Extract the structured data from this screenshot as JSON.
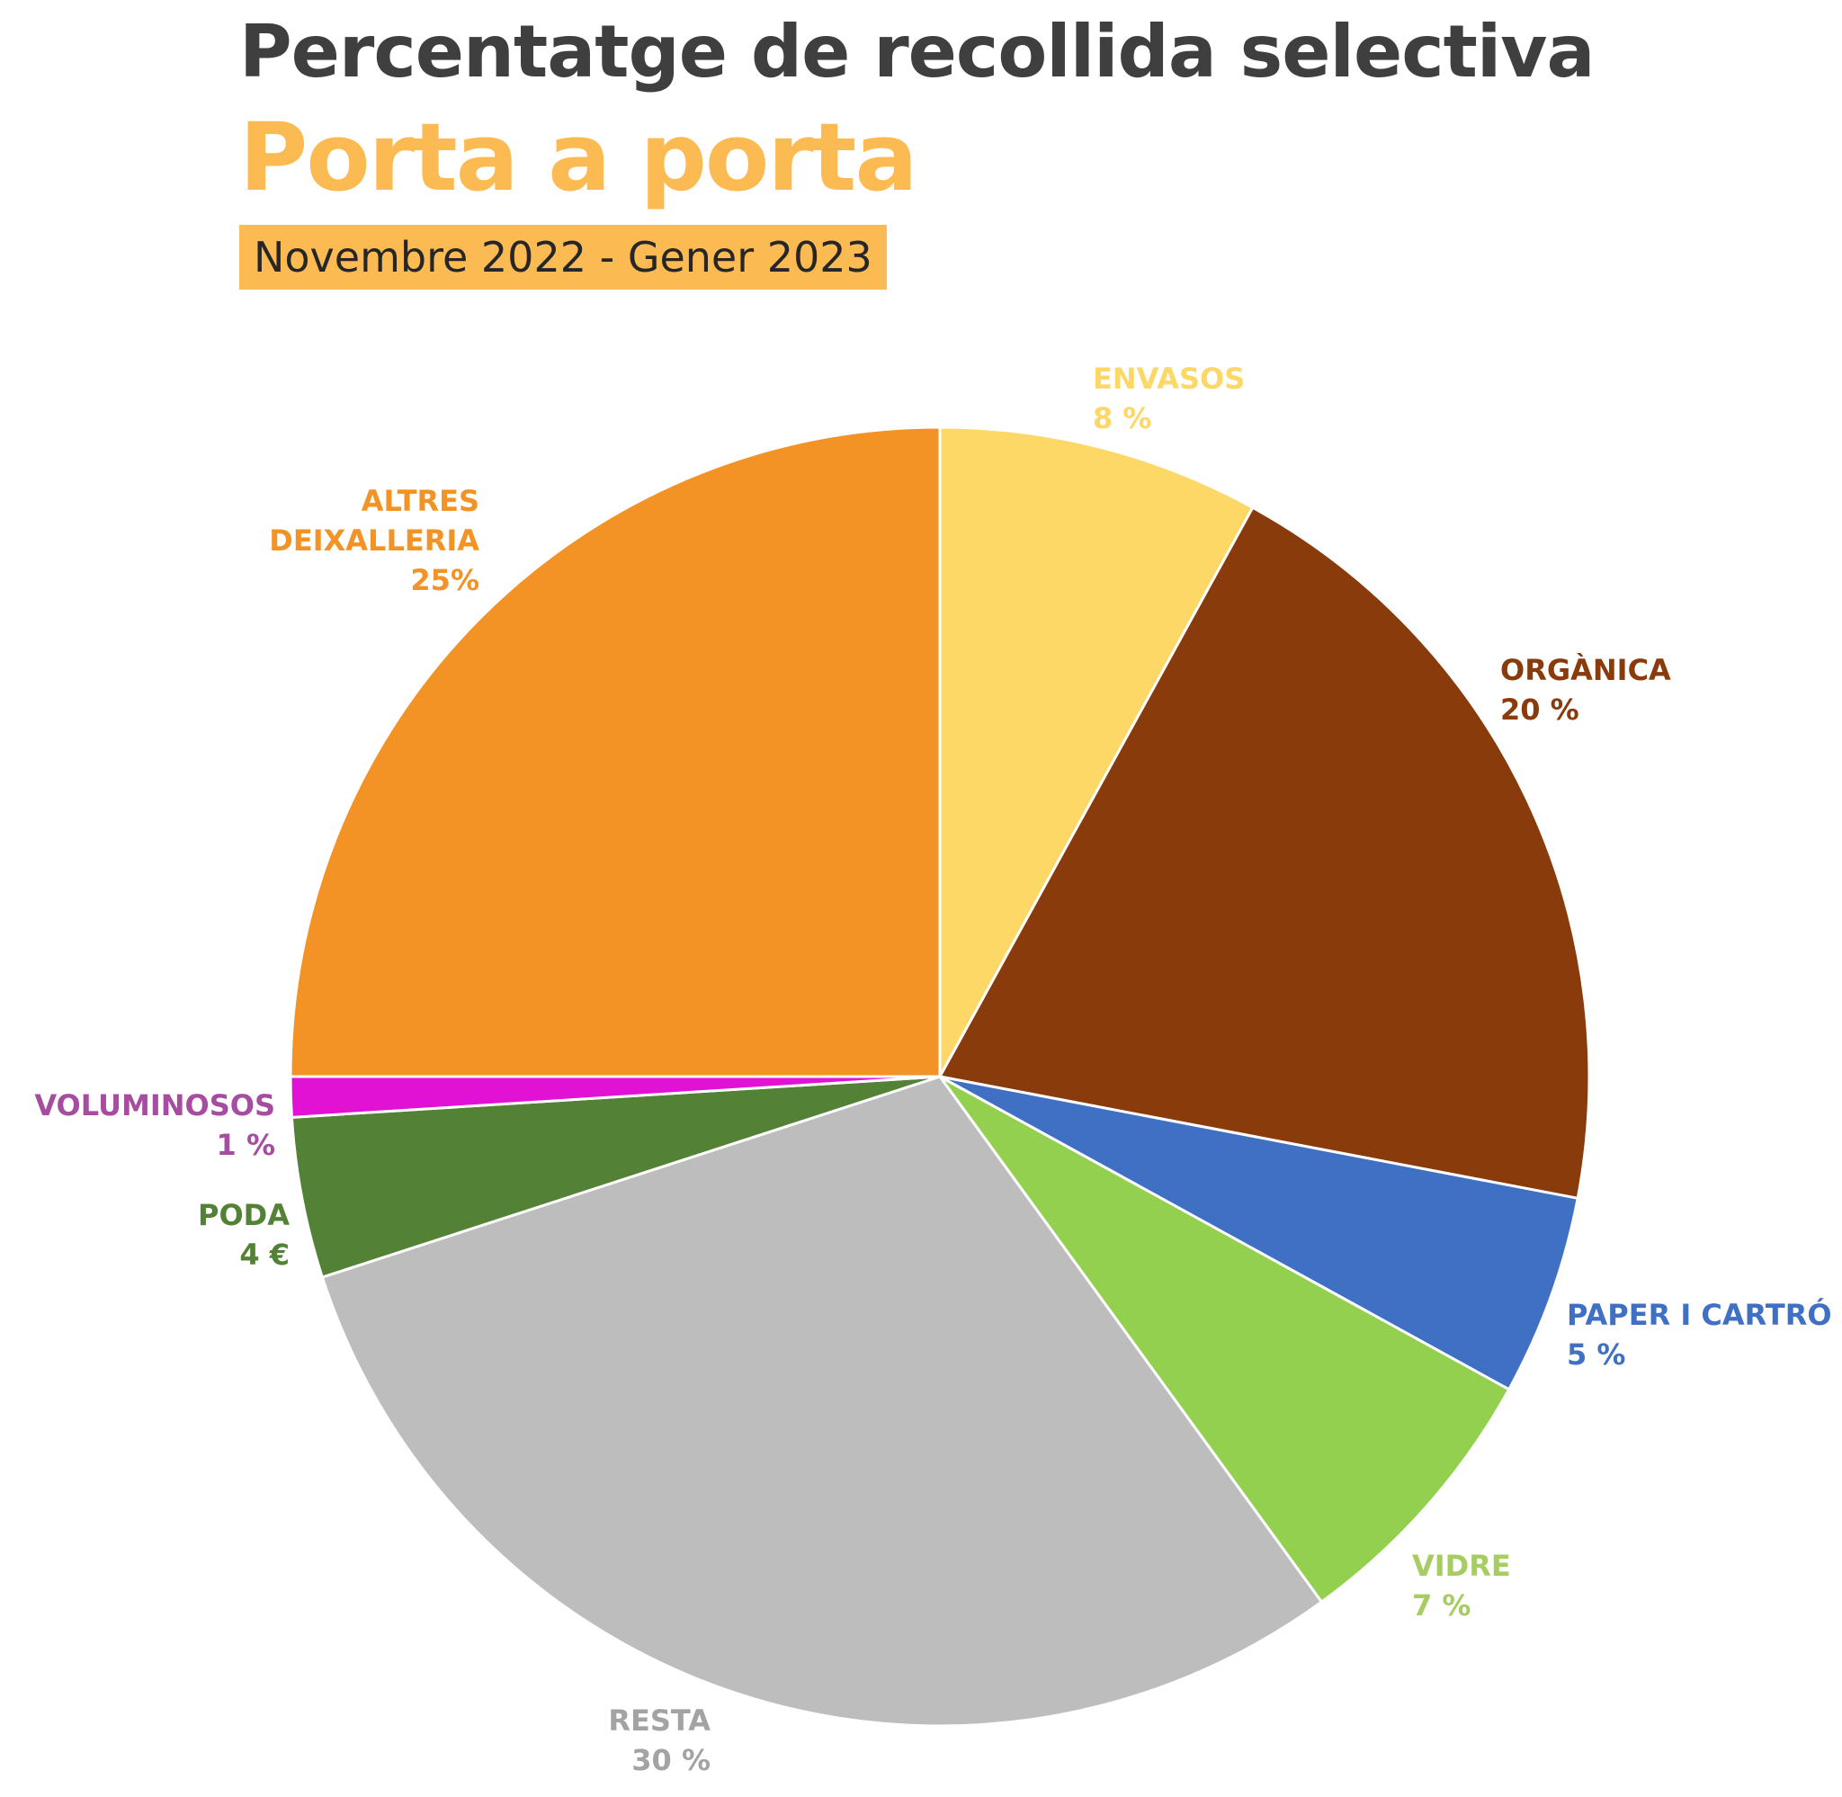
{
  "header": {
    "title": "Percentatge de recollida selectiva",
    "subtitle": "Porta a porta",
    "period": "Novembre 2022 - Gener 2023"
  },
  "chart_data": {
    "type": "pie",
    "title": "Percentatge de recollida selectiva",
    "subtitle": "Porta a porta",
    "slices": [
      {
        "name": "ENVASOS",
        "value": 8,
        "value_label": "8 %",
        "color": "#fdd867",
        "label_color": "#fdd867"
      },
      {
        "name": "ORGÀNICA",
        "value": 20,
        "value_label": "20 %",
        "color": "#8a3b0b",
        "label_color": "#8a3b0b"
      },
      {
        "name": "PAPER I CARTRÓ",
        "value": 5,
        "value_label": "5 %",
        "color": "#4070c4",
        "label_color": "#4070c4"
      },
      {
        "name": "VIDRE",
        "value": 7,
        "value_label": "7 %",
        "color": "#94d050",
        "label_color": "#a6cc62"
      },
      {
        "name": "RESTA",
        "value": 30,
        "value_label": "30 %",
        "color": "#bdbdbd",
        "label_color": "#a3a3a3"
      },
      {
        "name": "PODA",
        "value": 4,
        "value_label": "4 €",
        "color": "#538135",
        "label_color": "#538135"
      },
      {
        "name": "VOLUMINOSOS",
        "value": 1,
        "value_label": "1 %",
        "color": "#e212d5",
        "label_color": "#a64d9f"
      },
      {
        "name": "ALTRES DEIXALLERIA",
        "value": 25,
        "value_label": "25%",
        "color": "#f39326",
        "label_color": "#f39326"
      }
    ],
    "start": "12 o'clock",
    "direction": "clockwise",
    "legend": "none"
  }
}
